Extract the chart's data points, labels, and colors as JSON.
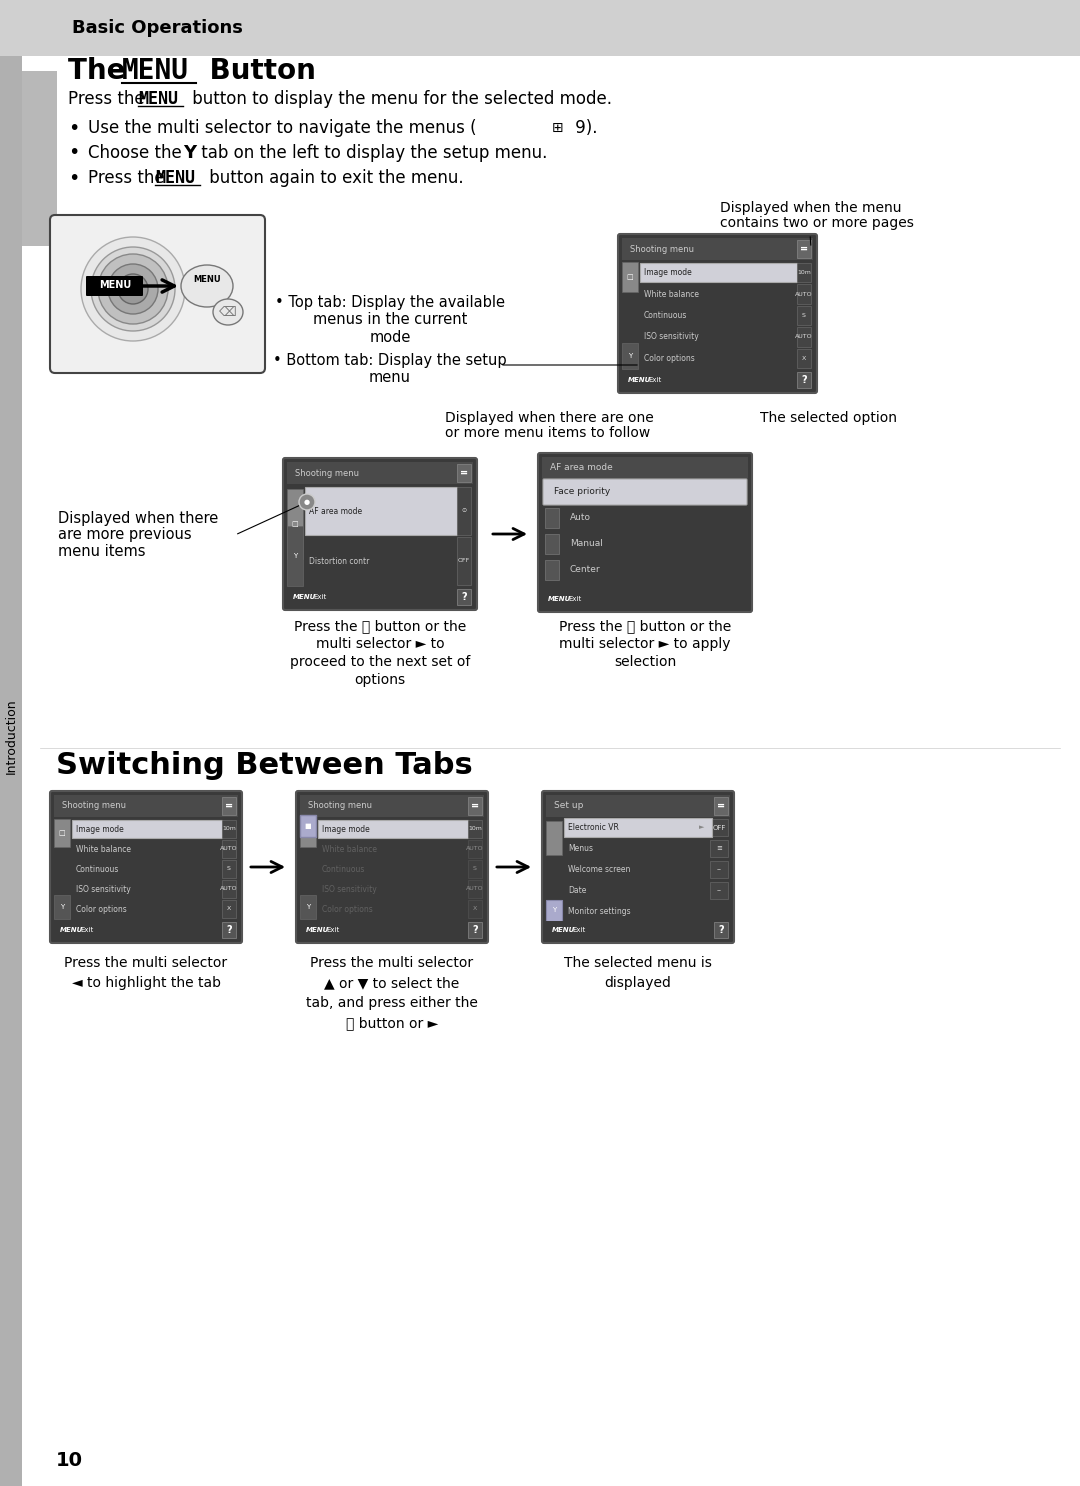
{
  "page_bg": "#ffffff",
  "header_bg": "#d0d0d0",
  "header_text": "Basic Operations",
  "sidebar_bg": "#b0b0b0",
  "sidebar_text": "Introduction",
  "title1": "The MENU Button",
  "title2": "Switching Between Tabs",
  "body_text1": "Press the MENU button to display the menu for the selected mode.",
  "bullets": [
    "Use the multi selector to navigate the menus ( 9).",
    "Choose the Y tab on the left to display the setup menu.",
    "Press the MENU button again to exit the menu."
  ],
  "screen_dark": "#3a3a3a",
  "screen_mid": "#5a5a5a",
  "screen_light": "#7a7a7a",
  "screen_header": "#4a4a4a",
  "selected_row": "#d0d0d8",
  "highlight_blue": "#8888cc",
  "menu_border": "#888888",
  "page_number": "10"
}
